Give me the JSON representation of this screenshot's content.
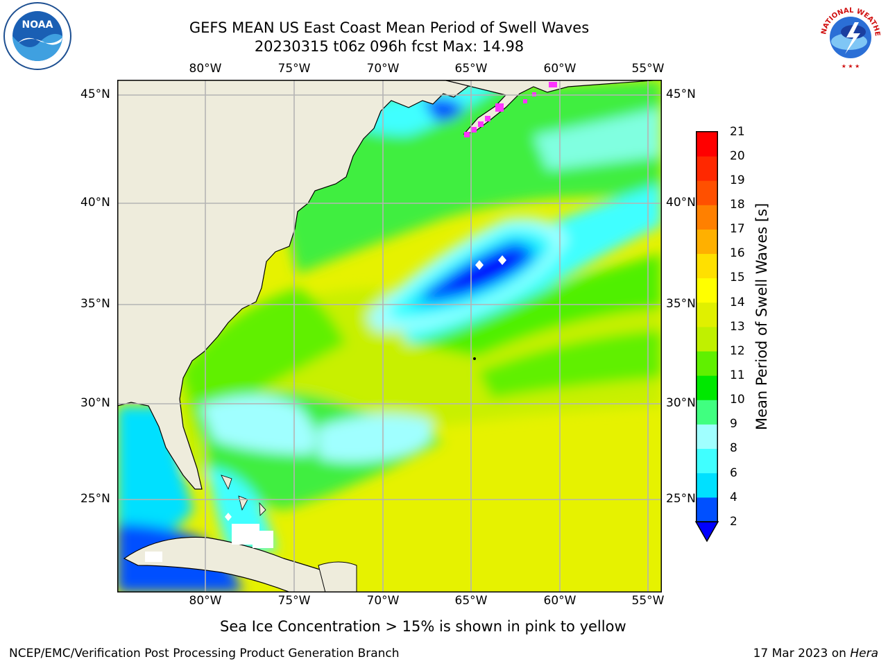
{
  "title": {
    "line1": "GEFS MEAN US East Coast Mean Period of Swell Waves",
    "line2": "20230315 t06z 096h fcst   Max: 14.98"
  },
  "map": {
    "lon_labels": [
      "80°W",
      "75°W",
      "70°W",
      "65°W",
      "60°W",
      "55°W"
    ],
    "lat_labels": [
      "45°N",
      "40°N",
      "35°N",
      "30°N",
      "25°N"
    ],
    "land_color": "#eeecdc",
    "grid_color": "#b4b4b4"
  },
  "colorbar": {
    "label": "Mean Period of Swell Waves [s]",
    "ticks": [
      "21",
      "20",
      "19",
      "18",
      "17",
      "16",
      "15",
      "14",
      "13",
      "12",
      "11",
      "10",
      "9",
      "8",
      "6",
      "4",
      "2"
    ],
    "colors_low_to_high": [
      "#0050ff",
      "#00e0ff",
      "#40ffff",
      "#a0ffff",
      "#40ff80",
      "#00e800",
      "#60f000",
      "#c0f000",
      "#e0f000",
      "#ffff00",
      "#ffe000",
      "#ffb000",
      "#ff8000",
      "#ff5000",
      "#ff2800",
      "#ff0000"
    ],
    "under_color": "#0000ff"
  },
  "subtitle": "Sea Ice Concentration > 15% is shown in pink to yellow",
  "footer": {
    "left": "NCEP/EMC/Verification Post Processing Product Generation Branch",
    "right_date": "17 Mar 2023 on ",
    "right_machine": "Hera"
  },
  "logos": {
    "noaa_text": "NOAA",
    "nws_text": "NATIONAL WEATHER SERVICE"
  }
}
